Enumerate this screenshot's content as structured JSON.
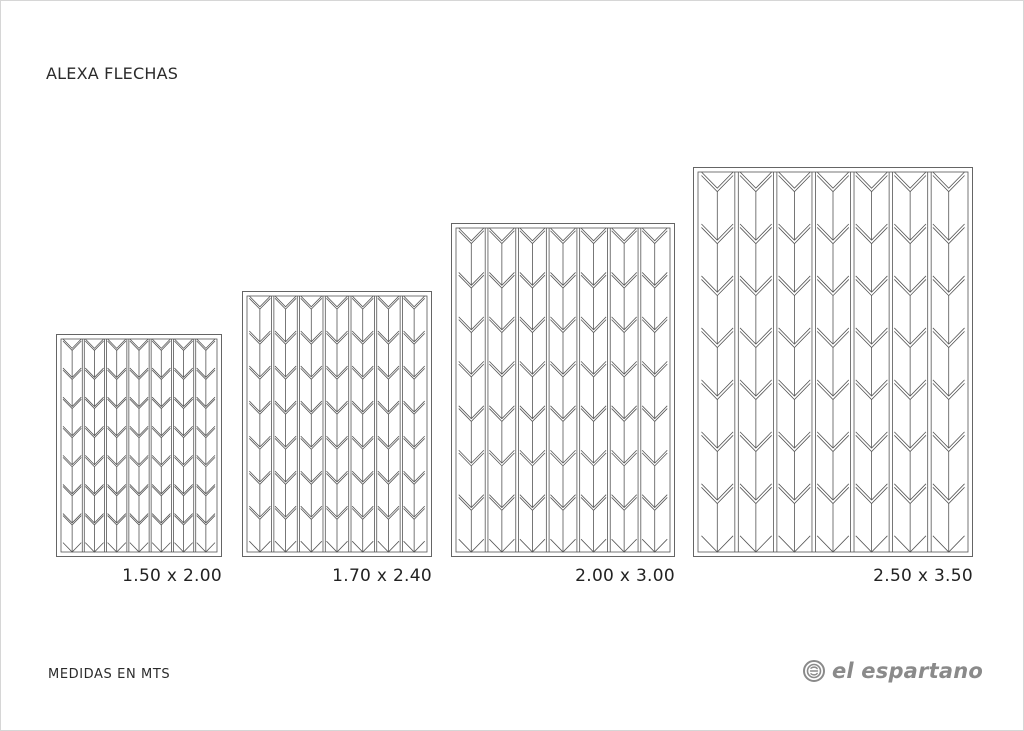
{
  "title": "ALEXA FLECHAS",
  "footnote": "MEDIDAS EN MTS",
  "brand": {
    "name": "el espartano",
    "mark_icon": "el-espartano-logo-icon",
    "color": "#8a8a8a"
  },
  "colors": {
    "line": "#555555",
    "border": "#d6d6d6"
  },
  "pattern_icon": "chevron-arrow-pattern",
  "rugs": [
    {
      "size_label": "1.50 x 2.00",
      "width_m": 1.5,
      "length_m": 2.0,
      "columns": 7,
      "rows": 7
    },
    {
      "size_label": "1.70 x 2.40",
      "width_m": 1.7,
      "length_m": 2.4,
      "columns": 7,
      "rows": 7
    },
    {
      "size_label": "2.00 x 3.00",
      "width_m": 2.0,
      "length_m": 3.0,
      "columns": 7,
      "rows": 7
    },
    {
      "size_label": "2.50 x 3.50",
      "width_m": 2.5,
      "length_m": 3.5,
      "columns": 7,
      "rows": 7
    }
  ]
}
